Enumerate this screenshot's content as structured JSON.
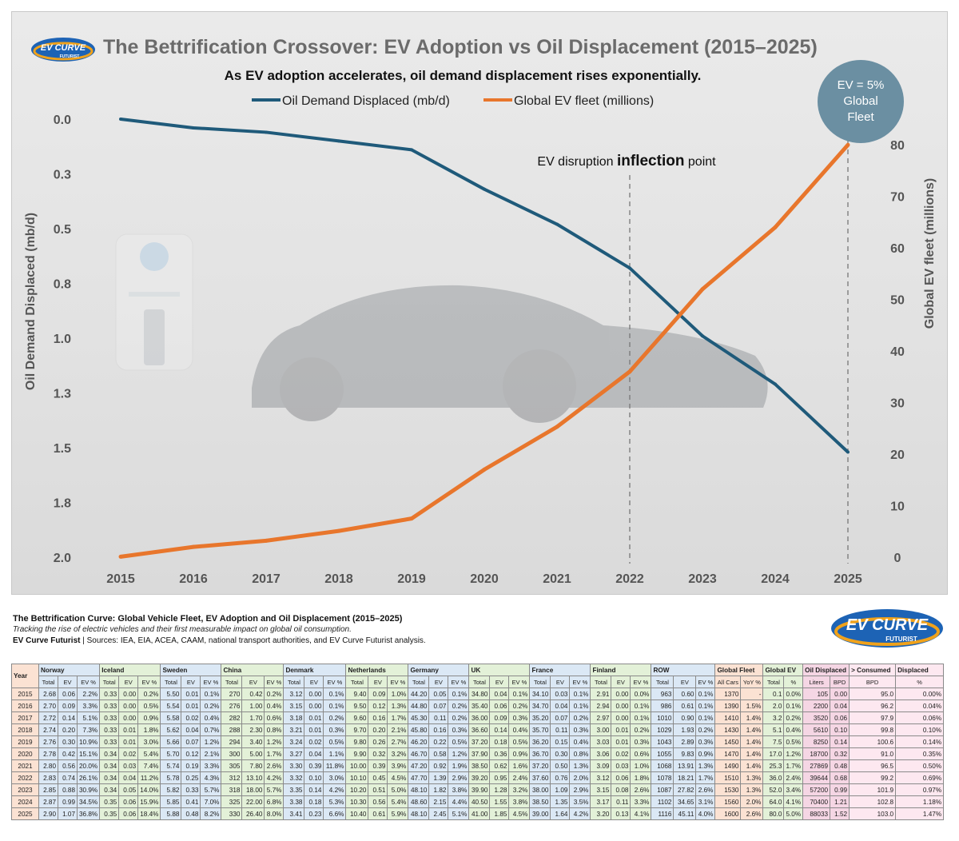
{
  "header": {
    "logo_text": "EV CURVE",
    "logo_sub": "FUTURIST",
    "title": "The Bettrification Crossover: EV Adoption vs Oil Displacement (2015–2025)",
    "subtitle": "As EV adoption accelerates, oil demand displacement rises exponentially."
  },
  "badge": {
    "text": "EV = 5% Global Fleet"
  },
  "chart_data": {
    "type": "line",
    "title": "The Bettrification Crossover: EV Adoption vs Oil Displacement (2015–2025)",
    "subtitle": "As EV adoption accelerates, oil demand displacement rises exponentially.",
    "x": [
      "2015",
      "2016",
      "2017",
      "2018",
      "2019",
      "2020",
      "2021",
      "2022",
      "2023",
      "2024",
      "2025"
    ],
    "series": [
      {
        "name": "Oil Demand Displaced (mb/d)",
        "axis": "left",
        "color": "#1f5a7a",
        "values": [
          0.0,
          0.04,
          0.06,
          0.1,
          0.14,
          0.32,
          0.48,
          0.68,
          0.99,
          1.21,
          1.52
        ]
      },
      {
        "name": "Global EV fleet (millions)",
        "axis": "right",
        "color": "#e8762c",
        "values": [
          0.1,
          2.0,
          3.2,
          5.1,
          7.5,
          17.0,
          25.3,
          36.0,
          52.0,
          64.0,
          80.0
        ]
      }
    ],
    "left_axis": {
      "label": "Oil Demand Displaced (mb/d)",
      "range": [
        0,
        2
      ],
      "inverted": true,
      "ticks": [
        "0.0",
        "0.3",
        "0.5",
        "0.8",
        "1.0",
        "1.3",
        "1.5",
        "1.8",
        "2.0"
      ]
    },
    "right_axis": {
      "label": "Global EV fleet (millions)",
      "range": [
        0,
        85
      ],
      "ticks": [
        "0",
        "10",
        "20",
        "30",
        "40",
        "50",
        "60",
        "70",
        "80"
      ]
    },
    "annotation": {
      "prefix": "EV disruption ",
      "emph": "inflection",
      "suffix": " point",
      "at": "2022"
    },
    "marker_year": "2025",
    "legend_position": "top-center"
  },
  "table_header": {
    "title": "The Bettrification Curve: Global Vehicle Fleet, EV Adoption and Oil Displacement (2015–2025)",
    "description": "Tracking the rise of electric vehicles and their first measurable impact on global oil consumption.",
    "sources_bold": "EV Curve Futurist",
    "sources_rest": " | Sources: IEA, EIA, ACEA, CAAM, national transport authorities, and EV Curve Futurist analysis."
  },
  "table": {
    "year_label": "Year",
    "groups": [
      {
        "name": "Norway",
        "cls": "c-nor",
        "sub": [
          "Total",
          "EV",
          "EV %"
        ]
      },
      {
        "name": "Iceland",
        "cls": "c-ice",
        "sub": [
          "Total",
          "EV",
          "EV %"
        ]
      },
      {
        "name": "Sweden",
        "cls": "c-swe",
        "sub": [
          "Total",
          "EV",
          "EV %"
        ]
      },
      {
        "name": "China",
        "cls": "c-chi",
        "sub": [
          "Total",
          "EV",
          "EV %"
        ]
      },
      {
        "name": "Denmark",
        "cls": "c-den",
        "sub": [
          "Total",
          "EV",
          "EV %"
        ]
      },
      {
        "name": "Netherlands",
        "cls": "c-net",
        "sub": [
          "Total",
          "EV",
          "EV %"
        ]
      },
      {
        "name": "Germany",
        "cls": "c-ger",
        "sub": [
          "Total",
          "EV",
          "EV %"
        ]
      },
      {
        "name": "UK",
        "cls": "c-uk",
        "sub": [
          "Total",
          "EV",
          "EV %"
        ]
      },
      {
        "name": "France",
        "cls": "c-fra",
        "sub": [
          "Total",
          "EV",
          "EV %"
        ]
      },
      {
        "name": "Finland",
        "cls": "c-fin",
        "sub": [
          "Total",
          "EV",
          "EV %"
        ]
      },
      {
        "name": "ROW",
        "cls": "c-row",
        "sub": [
          "Total",
          "EV",
          "EV %"
        ]
      },
      {
        "name": "Global Fleet",
        "cls": "c-gf",
        "sub": [
          "All Cars",
          "YoY %"
        ]
      },
      {
        "name": "Global EV",
        "cls": "c-gev",
        "sub": [
          "Total",
          "%"
        ]
      },
      {
        "name": "Oil Displaced",
        "cls": "c-od",
        "sub": [
          "Liters",
          "BPD"
        ]
      },
      {
        "name": "> Consumed",
        "cls": "c-od2",
        "sub": [
          "BPD"
        ]
      },
      {
        "name": "Displaced",
        "cls": "c-od2",
        "sub": [
          "%"
        ]
      }
    ],
    "rows": [
      [
        "2015",
        "2.68",
        "0.06",
        "2.2%",
        "0.33",
        "0.00",
        "0.2%",
        "5.50",
        "0.01",
        "0.1%",
        "270",
        "0.42",
        "0.2%",
        "3.12",
        "0.00",
        "0.1%",
        "9.40",
        "0.09",
        "1.0%",
        "44.20",
        "0.05",
        "0.1%",
        "34.80",
        "0.04",
        "0.1%",
        "34.10",
        "0.03",
        "0.1%",
        "2.91",
        "0.00",
        "0.0%",
        "963",
        "0.60",
        "0.1%",
        "1370",
        "-",
        "0.1",
        "0.0%",
        "105",
        "0.00",
        "95.0",
        "0.00%"
      ],
      [
        "2016",
        "2.70",
        "0.09",
        "3.3%",
        "0.33",
        "0.00",
        "0.5%",
        "5.54",
        "0.01",
        "0.2%",
        "276",
        "1.00",
        "0.4%",
        "3.15",
        "0.00",
        "0.1%",
        "9.50",
        "0.12",
        "1.3%",
        "44.80",
        "0.07",
        "0.2%",
        "35.40",
        "0.06",
        "0.2%",
        "34.70",
        "0.04",
        "0.1%",
        "2.94",
        "0.00",
        "0.1%",
        "986",
        "0.61",
        "0.1%",
        "1390",
        "1.5%",
        "2.0",
        "0.1%",
        "2200",
        "0.04",
        "96.2",
        "0.04%"
      ],
      [
        "2017",
        "2.72",
        "0.14",
        "5.1%",
        "0.33",
        "0.00",
        "0.9%",
        "5.58",
        "0.02",
        "0.4%",
        "282",
        "1.70",
        "0.6%",
        "3.18",
        "0.01",
        "0.2%",
        "9.60",
        "0.16",
        "1.7%",
        "45.30",
        "0.11",
        "0.2%",
        "36.00",
        "0.09",
        "0.3%",
        "35.20",
        "0.07",
        "0.2%",
        "2.97",
        "0.00",
        "0.1%",
        "1010",
        "0.90",
        "0.1%",
        "1410",
        "1.4%",
        "3.2",
        "0.2%",
        "3520",
        "0.06",
        "97.9",
        "0.06%"
      ],
      [
        "2018",
        "2.74",
        "0.20",
        "7.3%",
        "0.33",
        "0.01",
        "1.8%",
        "5.62",
        "0.04",
        "0.7%",
        "288",
        "2.30",
        "0.8%",
        "3.21",
        "0.01",
        "0.3%",
        "9.70",
        "0.20",
        "2.1%",
        "45.80",
        "0.16",
        "0.3%",
        "36.60",
        "0.14",
        "0.4%",
        "35.70",
        "0.11",
        "0.3%",
        "3.00",
        "0.01",
        "0.2%",
        "1029",
        "1.93",
        "0.2%",
        "1430",
        "1.4%",
        "5.1",
        "0.4%",
        "5610",
        "0.10",
        "99.8",
        "0.10%"
      ],
      [
        "2019",
        "2.76",
        "0.30",
        "10.9%",
        "0.33",
        "0.01",
        "3.0%",
        "5.66",
        "0.07",
        "1.2%",
        "294",
        "3.40",
        "1.2%",
        "3.24",
        "0.02",
        "0.5%",
        "9.80",
        "0.26",
        "2.7%",
        "46.20",
        "0.22",
        "0.5%",
        "37.20",
        "0.18",
        "0.5%",
        "36.20",
        "0.15",
        "0.4%",
        "3.03",
        "0.01",
        "0.3%",
        "1043",
        "2.89",
        "0.3%",
        "1450",
        "1.4%",
        "7.5",
        "0.5%",
        "8250",
        "0.14",
        "100.6",
        "0.14%"
      ],
      [
        "2020",
        "2.78",
        "0.42",
        "15.1%",
        "0.34",
        "0.02",
        "5.4%",
        "5.70",
        "0.12",
        "2.1%",
        "300",
        "5.00",
        "1.7%",
        "3.27",
        "0.04",
        "1.1%",
        "9.90",
        "0.32",
        "3.2%",
        "46.70",
        "0.58",
        "1.2%",
        "37.90",
        "0.36",
        "0.9%",
        "36.70",
        "0.30",
        "0.8%",
        "3.06",
        "0.02",
        "0.6%",
        "1055",
        "9.83",
        "0.9%",
        "1470",
        "1.4%",
        "17.0",
        "1.2%",
        "18700",
        "0.32",
        "91.0",
        "0.35%"
      ],
      [
        "2021",
        "2.80",
        "0.56",
        "20.0%",
        "0.34",
        "0.03",
        "7.4%",
        "5.74",
        "0.19",
        "3.3%",
        "305",
        "7.80",
        "2.6%",
        "3.30",
        "0.39",
        "11.8%",
        "10.00",
        "0.39",
        "3.9%",
        "47.20",
        "0.92",
        "1.9%",
        "38.50",
        "0.62",
        "1.6%",
        "37.20",
        "0.50",
        "1.3%",
        "3.09",
        "0.03",
        "1.0%",
        "1068",
        "13.91",
        "1.3%",
        "1490",
        "1.4%",
        "25.3",
        "1.7%",
        "27869",
        "0.48",
        "96.5",
        "0.50%"
      ],
      [
        "2022",
        "2.83",
        "0.74",
        "26.1%",
        "0.34",
        "0.04",
        "11.2%",
        "5.78",
        "0.25",
        "4.3%",
        "312",
        "13.10",
        "4.2%",
        "3.32",
        "0.10",
        "3.0%",
        "10.10",
        "0.45",
        "4.5%",
        "47.70",
        "1.39",
        "2.9%",
        "39.20",
        "0.95",
        "2.4%",
        "37.60",
        "0.76",
        "2.0%",
        "3.12",
        "0.06",
        "1.8%",
        "1078",
        "18.21",
        "1.7%",
        "1510",
        "1.3%",
        "36.0",
        "2.4%",
        "39644",
        "0.68",
        "99.2",
        "0.69%"
      ],
      [
        "2023",
        "2.85",
        "0.88",
        "30.9%",
        "0.34",
        "0.05",
        "14.0%",
        "5.82",
        "0.33",
        "5.7%",
        "318",
        "18.00",
        "5.7%",
        "3.35",
        "0.14",
        "4.2%",
        "10.20",
        "0.51",
        "5.0%",
        "48.10",
        "1.82",
        "3.8%",
        "39.90",
        "1.28",
        "3.2%",
        "38.00",
        "1.09",
        "2.9%",
        "3.15",
        "0.08",
        "2.6%",
        "1087",
        "27.82",
        "2.6%",
        "1530",
        "1.3%",
        "52.0",
        "3.4%",
        "57200",
        "0.99",
        "101.9",
        "0.97%"
      ],
      [
        "2024",
        "2.87",
        "0.99",
        "34.5%",
        "0.35",
        "0.06",
        "15.9%",
        "5.85",
        "0.41",
        "7.0%",
        "325",
        "22.00",
        "6.8%",
        "3.38",
        "0.18",
        "5.3%",
        "10.30",
        "0.56",
        "5.4%",
        "48.60",
        "2.15",
        "4.4%",
        "40.50",
        "1.55",
        "3.8%",
        "38.50",
        "1.35",
        "3.5%",
        "3.17",
        "0.11",
        "3.3%",
        "1102",
        "34.65",
        "3.1%",
        "1560",
        "2.0%",
        "64.0",
        "4.1%",
        "70400",
        "1.21",
        "102.8",
        "1.18%"
      ],
      [
        "2025",
        "2.90",
        "1.07",
        "36.8%",
        "0.35",
        "0.06",
        "18.4%",
        "5.88",
        "0.48",
        "8.2%",
        "330",
        "26.40",
        "8.0%",
        "3.41",
        "0.23",
        "6.6%",
        "10.40",
        "0.61",
        "5.9%",
        "48.10",
        "2.45",
        "5.1%",
        "41.00",
        "1.85",
        "4.5%",
        "39.00",
        "1.64",
        "4.2%",
        "3.20",
        "0.13",
        "4.1%",
        "1116",
        "45.11",
        "4.0%",
        "1600",
        "2.6%",
        "80.0",
        "5.0%",
        "88033",
        "1.52",
        "103.0",
        "1.47%"
      ]
    ]
  }
}
